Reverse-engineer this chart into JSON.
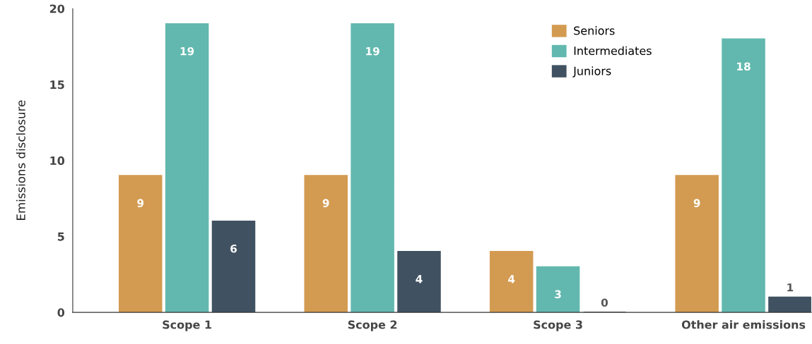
{
  "chart_data": {
    "type": "bar",
    "ylabel": "Emissions disclosure",
    "categories": [
      "Scope 1",
      "Scope 2",
      "Scope 3",
      "Other air emissions"
    ],
    "series": [
      {
        "name": "Seniors",
        "color": "#d39b51",
        "values": [
          9,
          9,
          4,
          9
        ]
      },
      {
        "name": "Intermediates",
        "color": "#62b8ae",
        "values": [
          19,
          19,
          3,
          18
        ]
      },
      {
        "name": "Juniors",
        "color": "#405262",
        "values": [
          6,
          4,
          0,
          1
        ]
      }
    ],
    "ylim": [
      0,
      20
    ],
    "yticks": [
      0,
      5,
      10,
      15,
      20
    ],
    "grid": false,
    "legend": "top right",
    "data_labels": true
  }
}
